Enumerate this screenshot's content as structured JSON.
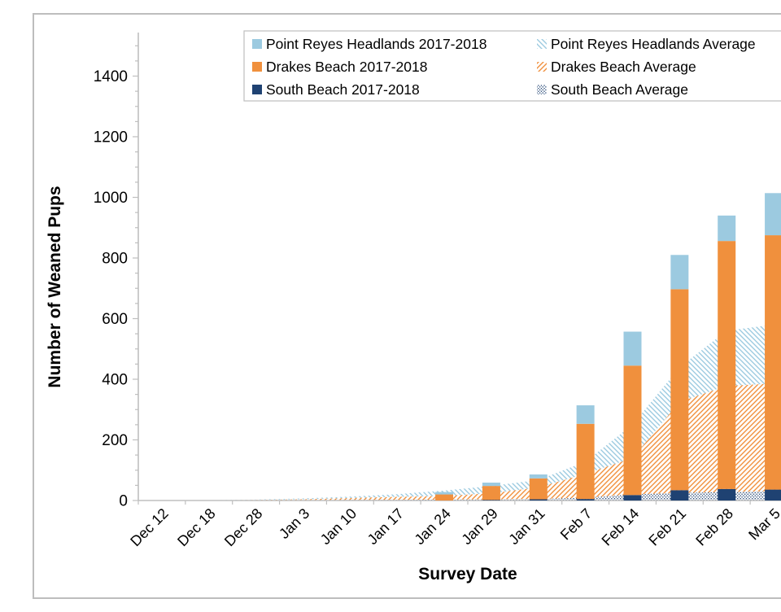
{
  "chart_data": {
    "type": "stacked-bar+stacked-area",
    "title": "",
    "xlabel": "Survey Date",
    "ylabel": "Number of  Weaned Pups",
    "categories": [
      "Dec 12",
      "Dec 18",
      "Dec 28",
      "Jan 3",
      "Jan 10",
      "Jan 17",
      "Jan 24",
      "Jan 29",
      "Jan 31",
      "Feb 7",
      "Feb 14",
      "Feb 21",
      "Feb 28",
      "Mar 5"
    ],
    "bar_series": [
      {
        "name": "Point Reyes Headlands 2017-2018",
        "color": "#9CCAE0",
        "stack_position": "top",
        "values": [
          0,
          0,
          0,
          0,
          0,
          0,
          8,
          11,
          13,
          61,
          112,
          113,
          84,
          139
        ]
      },
      {
        "name": "Drakes Beach 2017-2018",
        "color": "#F0903D",
        "stack_position": "middle",
        "values": [
          0,
          0,
          0,
          0,
          0,
          0,
          20,
          46,
          69,
          248,
          427,
          663,
          818,
          839
        ]
      },
      {
        "name": "South Beach 2017-2018",
        "color": "#1F4272",
        "stack_position": "bottom",
        "values": [
          0,
          0,
          0,
          0,
          0,
          0,
          0,
          2,
          4,
          5,
          18,
          34,
          38,
          36
        ]
      }
    ],
    "area_series": [
      {
        "name": "Point Reyes Headlands Average",
        "color": "#9CCAE0",
        "pattern": "diagonal-down",
        "stack_position": "top",
        "values": [
          0,
          0.5,
          1,
          3,
          5,
          9,
          18,
          24,
          25,
          40,
          110,
          115,
          182,
          194
        ]
      },
      {
        "name": "Drakes Beach Average",
        "color": "#F0903D",
        "pattern": "diagonal-up",
        "stack_position": "middle",
        "values": [
          0,
          0.5,
          1.5,
          3,
          6.5,
          10,
          12,
          20,
          38,
          79,
          120,
          300,
          350,
          355
        ]
      },
      {
        "name": "South Beach Average",
        "color": "#1F4272",
        "pattern": "dots",
        "stack_position": "bottom",
        "values": [
          0,
          0,
          0.5,
          1,
          1.5,
          2,
          3,
          4,
          5,
          9,
          20,
          25,
          28,
          31
        ]
      }
    ],
    "bar_totals": [
      0,
      0,
      0,
      0,
      0,
      0,
      28,
      59,
      86,
      314,
      557,
      810,
      940,
      1014
    ],
    "average_totals": [
      0,
      1,
      3,
      7,
      13,
      21,
      33,
      48,
      68,
      128,
      250,
      440,
      560,
      580
    ],
    "ylim": [
      0,
      1500
    ],
    "ytick_labels": [
      "0",
      "200",
      "400",
      "600",
      "800",
      "1000",
      "1200",
      "1400"
    ],
    "ytick_step": 200,
    "yminor_step": 50,
    "grid": false,
    "legend_position": "top",
    "axis_color": "#BFBFBF",
    "text_color": "#000000"
  }
}
